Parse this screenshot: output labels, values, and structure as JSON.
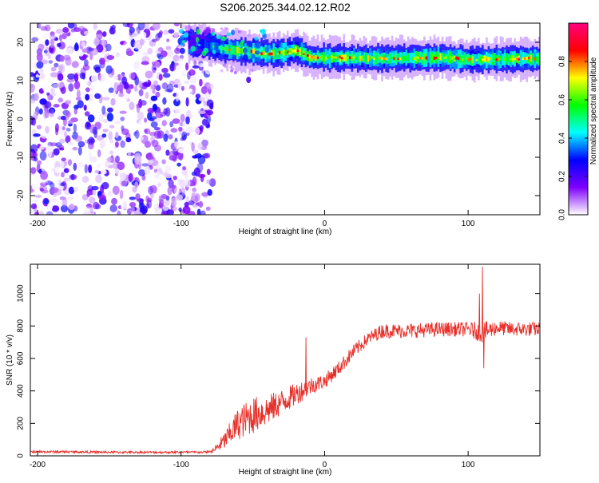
{
  "title": "S206.2025.344.02.12.R02",
  "chart_data": [
    {
      "type": "heatmap",
      "title": "S206.2025.344.02.12.R02",
      "xlabel": "Height of straight line (km)",
      "ylabel": "Frequency (Hz)",
      "xlim": [
        -205,
        150
      ],
      "ylim": [
        -25,
        25
      ],
      "xticks": [
        -200,
        -100,
        0,
        100
      ],
      "yticks": [
        -20,
        -10,
        0,
        10,
        20
      ],
      "xtick_labels": [
        "-200",
        "-100",
        "0",
        "100"
      ],
      "ytick_labels": [
        "-20",
        "-10",
        "0",
        "10",
        "20"
      ],
      "colorbar": {
        "label": "Normalized spectral amplitude",
        "range": [
          0,
          1
        ],
        "ticks": [
          0.0,
          0.2,
          0.4,
          0.6,
          0.8
        ],
        "tick_labels": [
          "0.0",
          "0.2",
          "0.4",
          "0.6",
          "0.8"
        ],
        "colormap": [
          "#ffffff",
          "#7f00ff",
          "#0000ff",
          "#00ffff",
          "#00ff00",
          "#ffff00",
          "#ff0000",
          "#ff0080"
        ]
      },
      "noise_region_x": [
        -205,
        -78
      ],
      "noise_amplitude_range": [
        0.0,
        0.3
      ],
      "ridge": {
        "x_start": -95,
        "x_end": 150,
        "frequency_points": [
          {
            "x": -95,
            "f": 20.0
          },
          {
            "x": -75,
            "f": 18.5
          },
          {
            "x": -55,
            "f": 17.5
          },
          {
            "x": -35,
            "f": 17.0
          },
          {
            "x": -20,
            "f": 18.0
          },
          {
            "x": -10,
            "f": 16.0
          },
          {
            "x": 20,
            "f": 16.0
          },
          {
            "x": 40,
            "f": 15.8
          },
          {
            "x": 80,
            "f": 16.0
          },
          {
            "x": 100,
            "f": 15.5
          },
          {
            "x": 150,
            "f": 15.8
          }
        ],
        "peak_amplitude": 0.9
      }
    },
    {
      "type": "line",
      "xlabel": "Height of straight line (km)",
      "ylabel": "SNR (10 * v/v)",
      "xlim": [
        -205,
        150
      ],
      "ylim": [
        0,
        1180
      ],
      "xticks": [
        -200,
        -100,
        0,
        100
      ],
      "yticks": [
        0,
        200,
        400,
        600,
        800,
        1000
      ],
      "xtick_labels": [
        "-200",
        "-100",
        "0",
        "100"
      ],
      "ytick_labels": [
        "0",
        "200",
        "400",
        "600",
        "800",
        "1000"
      ],
      "color": "#e8302a",
      "series": [
        {
          "name": "SNR",
          "x": [
            -205,
            -180,
            -150,
            -120,
            -100,
            -85,
            -78,
            -70,
            -60,
            -50,
            -40,
            -30,
            -20,
            -10,
            0,
            10,
            20,
            30,
            40,
            50,
            60,
            80,
            100,
            110,
            120,
            130,
            150
          ],
          "y": [
            25,
            25,
            22,
            22,
            22,
            22,
            28,
            90,
            200,
            250,
            280,
            330,
            380,
            430,
            460,
            540,
            640,
            720,
            770,
            770,
            770,
            780,
            780,
            760,
            790,
            780,
            780
          ],
          "noise": [
            20,
            20,
            20,
            20,
            20,
            20,
            30,
            110,
            200,
            230,
            190,
            160,
            140,
            110,
            90,
            90,
            90,
            80,
            90,
            90,
            90,
            90,
            90,
            130,
            90,
            90,
            90
          ]
        }
      ],
      "spikes": [
        {
          "x": -13,
          "y": 730
        },
        {
          "x": 108,
          "y": 1000
        },
        {
          "x": 110,
          "y": 1165
        },
        {
          "x": 111,
          "y": 540
        }
      ]
    }
  ]
}
